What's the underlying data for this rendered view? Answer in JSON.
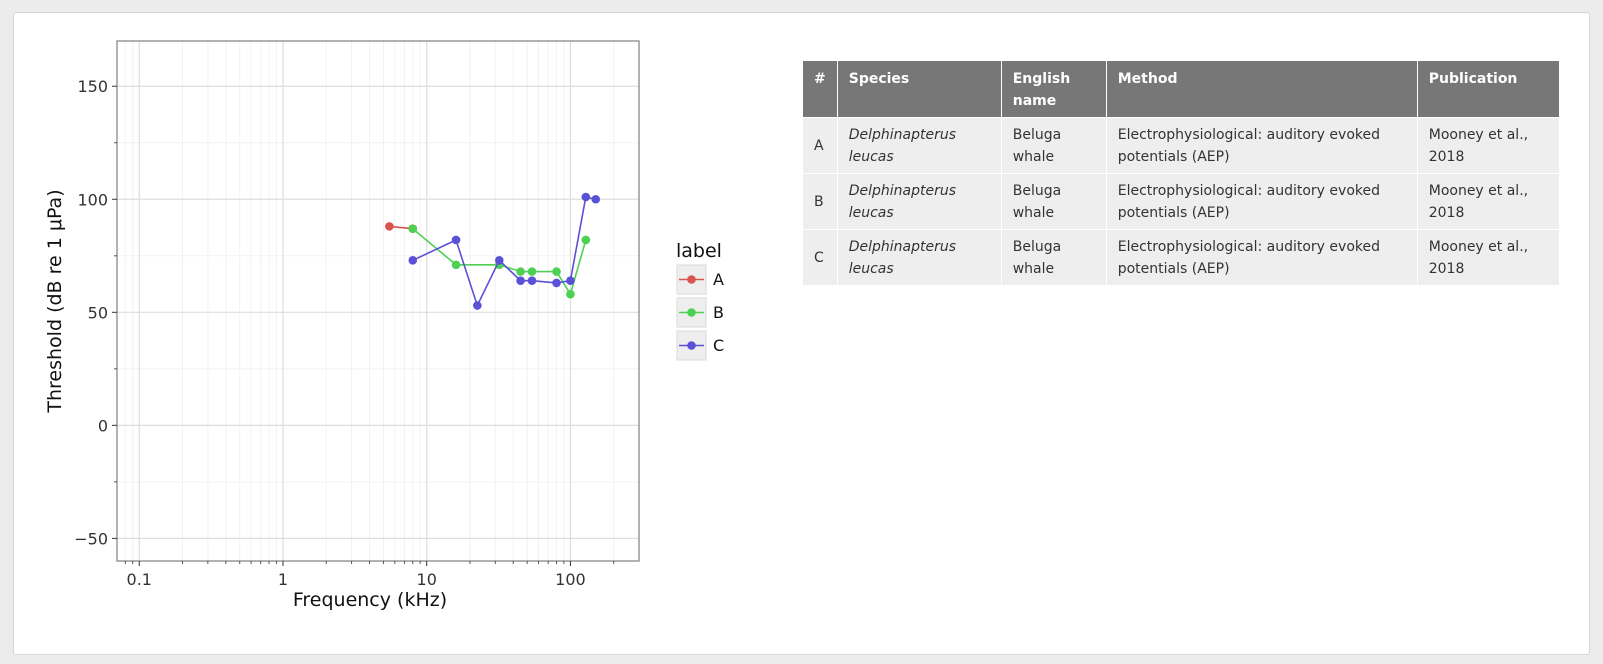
{
  "chart_data": {
    "type": "line",
    "xlabel": "Frequency (kHz)",
    "ylabel": "Threshold (dB re 1 μPa)",
    "xscale": "log",
    "xlim": [
      0.07,
      300
    ],
    "ylim": [
      -60,
      170
    ],
    "xticks": [
      {
        "value": 0.1,
        "label": "0.1"
      },
      {
        "value": 1,
        "label": "1"
      },
      {
        "value": 10,
        "label": "10"
      },
      {
        "value": 100,
        "label": "100"
      }
    ],
    "yticks": [
      {
        "value": 150,
        "label": "150"
      },
      {
        "value": 100,
        "label": "100"
      },
      {
        "value": 50,
        "label": "50"
      },
      {
        "value": 0,
        "label": "0"
      },
      {
        "value": -50,
        "label": "−50"
      }
    ],
    "grid": true,
    "legend": {
      "title": "label",
      "position": "right"
    },
    "series": [
      {
        "name": "A",
        "color": "#d9544c",
        "x": [
          5.5,
          8
        ],
        "y": [
          88,
          87
        ]
      },
      {
        "name": "B",
        "color": "#4ed052",
        "x": [
          8,
          16,
          32,
          45,
          54,
          80,
          100,
          128
        ],
        "y": [
          87,
          71,
          71,
          68,
          68,
          68,
          58,
          82
        ]
      },
      {
        "name": "C",
        "color": "#5b51d8",
        "x": [
          8,
          16,
          22.5,
          32,
          45,
          54,
          80,
          100,
          128,
          150
        ],
        "y": [
          73,
          82,
          53,
          73,
          64,
          64,
          63,
          64,
          101,
          100
        ]
      }
    ]
  },
  "table": {
    "headers": [
      "#",
      "Species",
      "English name",
      "Method",
      "Publication"
    ],
    "rows": [
      {
        "id": "A",
        "species": "Delphinapterus leucas",
        "english": "Beluga whale",
        "method": "Electrophysiological: auditory evoked potentials (AEP)",
        "publication": "Mooney et al., 2018"
      },
      {
        "id": "B",
        "species": "Delphinapterus leucas",
        "english": "Beluga whale",
        "method": "Electrophysiological: auditory evoked potentials (AEP)",
        "publication": "Mooney et al., 2018"
      },
      {
        "id": "C",
        "species": "Delphinapterus leucas",
        "english": "Beluga whale",
        "method": "Electrophysiological: auditory evoked potentials (AEP)",
        "publication": "Mooney et al., 2018"
      }
    ]
  }
}
